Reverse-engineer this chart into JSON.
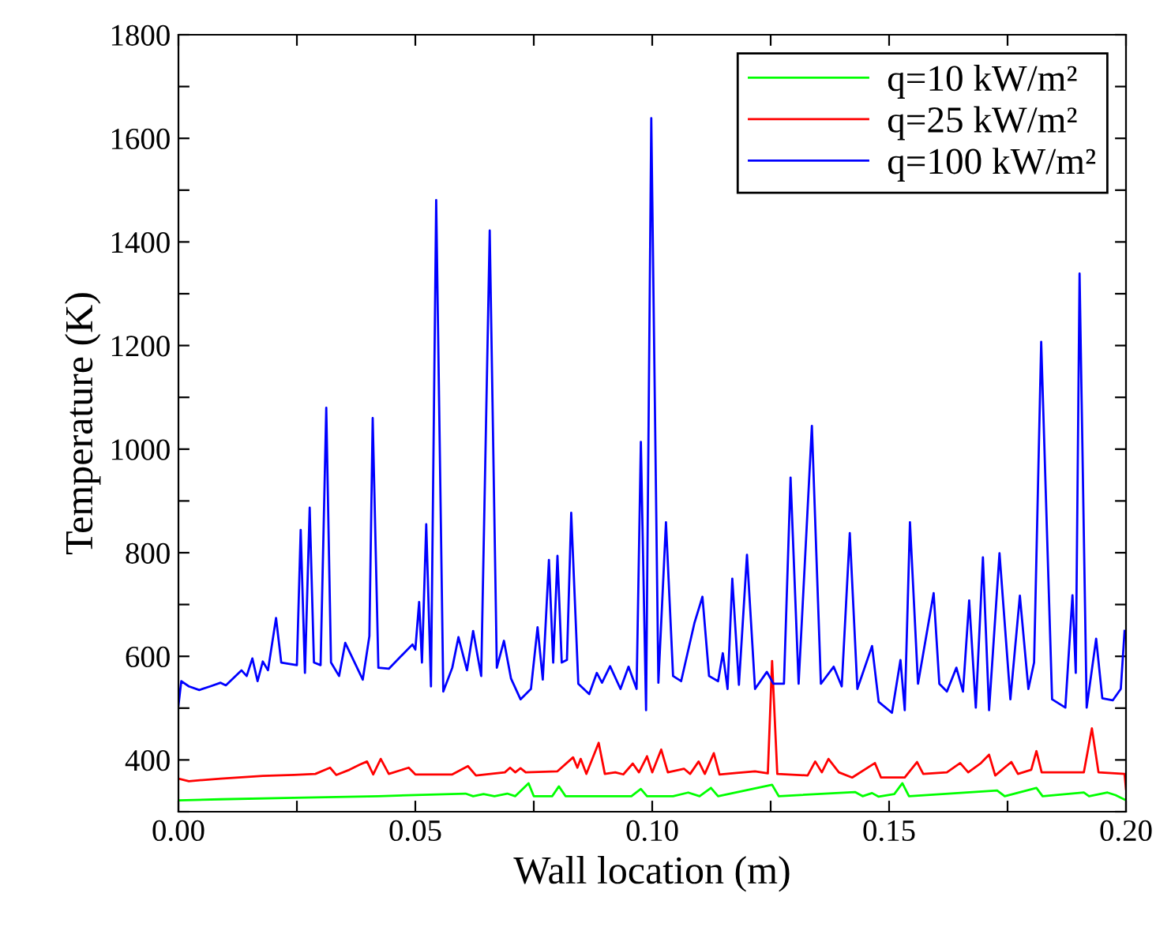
{
  "chart_data": {
    "type": "line",
    "xlabel": "Wall location (m)",
    "ylabel": "Temperature (K)",
    "xlim": [
      0,
      0.2
    ],
    "ylim": [
      300,
      1800
    ],
    "xticks": [
      {
        "value": 0,
        "label": "0.00"
      },
      {
        "value": 0.025,
        "label": null
      },
      {
        "value": 0.05,
        "label": "0.05"
      },
      {
        "value": 0.075,
        "label": null
      },
      {
        "value": 0.1,
        "label": "0.10"
      },
      {
        "value": 0.125,
        "label": null
      },
      {
        "value": 0.15,
        "label": "0.15"
      },
      {
        "value": 0.175,
        "label": null
      },
      {
        "value": 0.2,
        "label": "0.20"
      }
    ],
    "yticks": [
      {
        "value": 300,
        "label": null
      },
      400,
      {
        "value": 500,
        "label": null
      },
      600,
      {
        "value": 700,
        "label": null
      },
      800,
      {
        "value": 900,
        "label": null
      },
      1000,
      {
        "value": 1100,
        "label": null
      },
      1200,
      {
        "value": 1300,
        "label": null
      },
      1400,
      {
        "value": 1500,
        "label": null
      },
      1600,
      {
        "value": 1700,
        "label": null
      },
      1800
    ],
    "legend": "top right",
    "grid": false,
    "line_style": "solid",
    "marker": "none",
    "series": [
      {
        "name": "q=10 kW/m²",
        "color": "#00ff00",
        "x": [
          0,
          0.0089,
          0.0244,
          0.0422,
          0.0606,
          0.0622,
          0.0644,
          0.0667,
          0.0694,
          0.0711,
          0.0739,
          0.075,
          0.0789,
          0.0803,
          0.0817,
          0.0956,
          0.0976,
          0.0989,
          0.1044,
          0.1076,
          0.11,
          0.1124,
          0.1139,
          0.1253,
          0.1267,
          0.1428,
          0.1444,
          0.1464,
          0.1478,
          0.1511,
          0.1528,
          0.1542,
          0.1728,
          0.1744,
          0.1811,
          0.1824,
          0.1911,
          0.1922,
          0.1961,
          0.1978,
          0.2
        ],
        "values": [
          322,
          324,
          327,
          330,
          335,
          330,
          334,
          330,
          335,
          330,
          355,
          330,
          330,
          349,
          330,
          330,
          344,
          330,
          330,
          337,
          330,
          346,
          330,
          352,
          330,
          338,
          330,
          336,
          329,
          334,
          355,
          330,
          341,
          330,
          346,
          330,
          337,
          330,
          337,
          332,
          322
        ]
      },
      {
        "name": "q=25 kW/m²",
        "color": "#ff0000",
        "x": [
          0,
          0.0022,
          0.0089,
          0.0178,
          0.0244,
          0.0289,
          0.032,
          0.0333,
          0.0361,
          0.0383,
          0.0398,
          0.0411,
          0.0427,
          0.0444,
          0.0486,
          0.05,
          0.0578,
          0.0611,
          0.0628,
          0.0689,
          0.07,
          0.0711,
          0.0722,
          0.0733,
          0.08,
          0.0833,
          0.0842,
          0.0849,
          0.0861,
          0.0887,
          0.09,
          0.0922,
          0.0939,
          0.0959,
          0.0972,
          0.0989,
          0.1,
          0.1019,
          0.1033,
          0.1067,
          0.108,
          0.1098,
          0.1111,
          0.113,
          0.1142,
          0.1178,
          0.1217,
          0.1244,
          0.1253,
          0.1264,
          0.1328,
          0.1344,
          0.1358,
          0.1372,
          0.1394,
          0.1422,
          0.147,
          0.1483,
          0.1533,
          0.1559,
          0.1572,
          0.1622,
          0.165,
          0.1667,
          0.1694,
          0.1711,
          0.1724,
          0.1758,
          0.1772,
          0.18,
          0.1811,
          0.1822,
          0.1911,
          0.1928,
          0.1942,
          0.1997,
          0.2
        ],
        "values": [
          364,
          359,
          364,
          369,
          371,
          373,
          385,
          371,
          381,
          391,
          397,
          372,
          402,
          373,
          385,
          372,
          372,
          388,
          370,
          376,
          385,
          376,
          384,
          376,
          378,
          405,
          385,
          402,
          373,
          433,
          373,
          376,
          372,
          393,
          376,
          407,
          376,
          420,
          376,
          383,
          373,
          397,
          373,
          413,
          372,
          375,
          378,
          374,
          591,
          373,
          370,
          397,
          376,
          402,
          376,
          366,
          394,
          366,
          366,
          396,
          373,
          376,
          394,
          376,
          394,
          410,
          370,
          396,
          373,
          381,
          417,
          376,
          376,
          461,
          376,
          373,
          344
        ]
      },
      {
        "name": "q=100 kW/m²",
        "color": "#0000ff",
        "x": [
          0,
          0.0006,
          0.0022,
          0.0044,
          0.0067,
          0.0089,
          0.01,
          0.0133,
          0.0144,
          0.0156,
          0.0167,
          0.0178,
          0.0189,
          0.0206,
          0.0217,
          0.025,
          0.0258,
          0.0267,
          0.0277,
          0.0286,
          0.03,
          0.0312,
          0.0322,
          0.0339,
          0.0352,
          0.0389,
          0.0403,
          0.041,
          0.0422,
          0.0444,
          0.0478,
          0.0494,
          0.05,
          0.0508,
          0.0514,
          0.0523,
          0.0533,
          0.0544,
          0.0559,
          0.0578,
          0.0591,
          0.0609,
          0.0622,
          0.0639,
          0.0657,
          0.0672,
          0.0687,
          0.0702,
          0.0722,
          0.0744,
          0.0758,
          0.0769,
          0.0782,
          0.0791,
          0.08,
          0.0809,
          0.082,
          0.0829,
          0.0844,
          0.0867,
          0.0883,
          0.0894,
          0.0911,
          0.0933,
          0.095,
          0.0967,
          0.0976,
          0.0987,
          0.0998,
          0.1013,
          0.1029,
          0.1044,
          0.1061,
          0.1089,
          0.1106,
          0.112,
          0.1139,
          0.1149,
          0.1159,
          0.1169,
          0.1183,
          0.12,
          0.1217,
          0.1242,
          0.1256,
          0.1278,
          0.1292,
          0.1309,
          0.1337,
          0.1356,
          0.1383,
          0.14,
          0.1417,
          0.1433,
          0.1464,
          0.1478,
          0.1506,
          0.1524,
          0.1533,
          0.1544,
          0.1561,
          0.1594,
          0.1606,
          0.1622,
          0.1642,
          0.1656,
          0.1669,
          0.1683,
          0.1698,
          0.1711,
          0.1733,
          0.1756,
          0.1776,
          0.1794,
          0.1806,
          0.1821,
          0.1844,
          0.1872,
          0.1887,
          0.1894,
          0.1902,
          0.1917,
          0.1937,
          0.195,
          0.1972,
          0.1989,
          0.1997
        ],
        "values": [
          505,
          552,
          542,
          535,
          542,
          549,
          544,
          573,
          562,
          596,
          552,
          590,
          573,
          674,
          588,
          583,
          844,
          568,
          887,
          588,
          583,
          1080,
          588,
          562,
          626,
          555,
          639,
          1060,
          578,
          576,
          608,
          623,
          613,
          705,
          588,
          855,
          542,
          1481,
          532,
          578,
          637,
          573,
          649,
          562,
          1422,
          578,
          630,
          557,
          517,
          537,
          656,
          555,
          786,
          588,
          794,
          588,
          593,
          877,
          547,
          527,
          568,
          549,
          581,
          537,
          580,
          537,
          1014,
          496,
          1639,
          549,
          859,
          562,
          552,
          664,
          715,
          562,
          552,
          606,
          537,
          750,
          545,
          796,
          537,
          570,
          547,
          547,
          945,
          547,
          1045,
          547,
          580,
          542,
          838,
          537,
          620,
          512,
          491,
          593,
          496,
          859,
          547,
          722,
          547,
          532,
          578,
          532,
          708,
          501,
          791,
          496,
          799,
          517,
          717,
          537,
          588,
          1207,
          517,
          501,
          718,
          568,
          1339,
          501,
          634,
          519,
          515,
          537,
          649
        ]
      }
    ]
  }
}
